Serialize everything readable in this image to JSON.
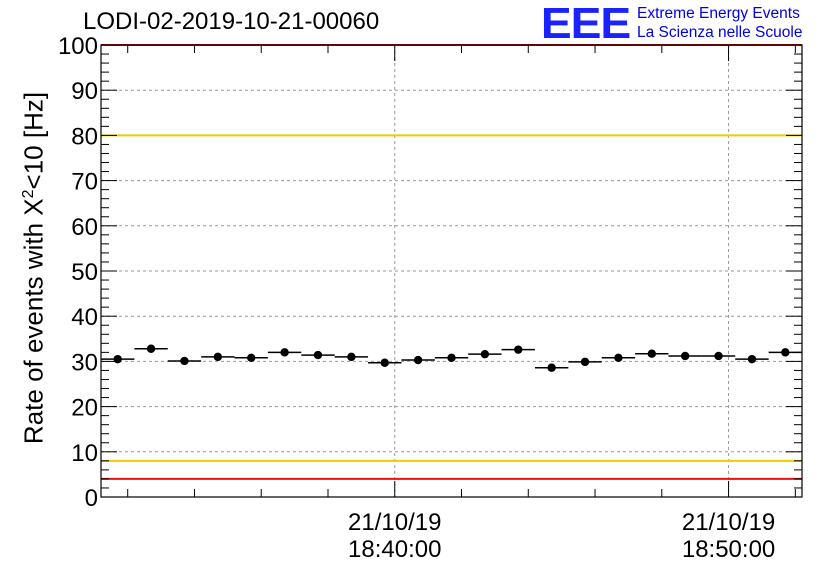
{
  "title": "LODI-02-2019-10-21-00060",
  "logo": {
    "text": "EEE",
    "line1": "Extreme Energy Events",
    "line2": "La Scienza nelle Scuole"
  },
  "colors": {
    "red": "#ee1111",
    "yellow": "#eecc00",
    "marker": "#000000",
    "logo": "#1a22ff"
  },
  "chart_data": {
    "type": "scatter",
    "title": "LODI-02-2019-10-21-00060",
    "ylabel_prefix": "Rate of events with X",
    "ylabel_sup": "2",
    "ylabel_suffix": "<10 [Hz]",
    "ylim": [
      0,
      100
    ],
    "yticks": [
      "0",
      "10",
      "20",
      "30",
      "40",
      "50",
      "60",
      "70",
      "80",
      "90",
      "100"
    ],
    "xlim_minutes": [
      31.2,
      52.2
    ],
    "xticks": [
      {
        "minute": 40,
        "date": "21/10/19",
        "time": "18:40:00"
      },
      {
        "minute": 50,
        "date": "21/10/19",
        "time": "18:50:00"
      }
    ],
    "bin_width_minutes": 1,
    "points": [
      {
        "x": 31.7,
        "y": 30.5
      },
      {
        "x": 32.7,
        "y": 32.8
      },
      {
        "x": 33.7,
        "y": 30.1
      },
      {
        "x": 34.7,
        "y": 31.0
      },
      {
        "x": 35.7,
        "y": 30.8
      },
      {
        "x": 36.7,
        "y": 32.0
      },
      {
        "x": 37.7,
        "y": 31.4
      },
      {
        "x": 38.7,
        "y": 31.0
      },
      {
        "x": 39.7,
        "y": 29.7
      },
      {
        "x": 40.7,
        "y": 30.3
      },
      {
        "x": 41.7,
        "y": 30.8
      },
      {
        "x": 42.7,
        "y": 31.6
      },
      {
        "x": 43.7,
        "y": 32.6
      },
      {
        "x": 44.7,
        "y": 28.6
      },
      {
        "x": 45.7,
        "y": 29.9
      },
      {
        "x": 46.7,
        "y": 30.8
      },
      {
        "x": 47.7,
        "y": 31.7
      },
      {
        "x": 48.7,
        "y": 31.2
      },
      {
        "x": 49.7,
        "y": 31.2
      },
      {
        "x": 50.7,
        "y": 30.5
      },
      {
        "x": 51.7,
        "y": 32.0
      }
    ],
    "reference_lines": [
      {
        "y": 100,
        "color": "#ee1111"
      },
      {
        "y": 80,
        "color": "#eecc00"
      },
      {
        "y": 8,
        "color": "#eecc00"
      },
      {
        "y": 4,
        "color": "#ee1111"
      }
    ]
  }
}
